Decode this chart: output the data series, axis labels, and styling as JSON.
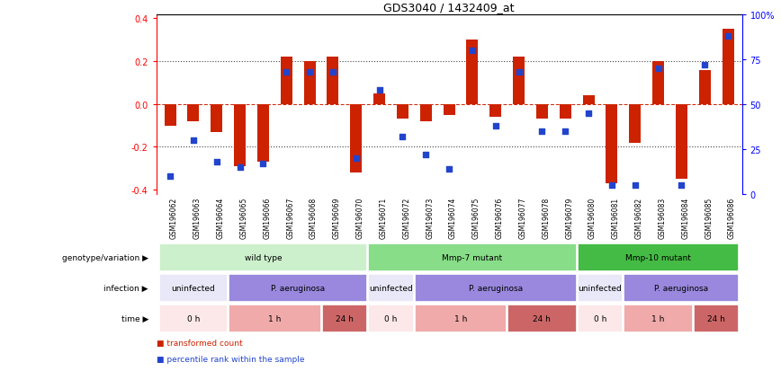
{
  "title": "GDS3040 / 1432409_at",
  "samples": [
    "GSM196062",
    "GSM196063",
    "GSM196064",
    "GSM196065",
    "GSM196066",
    "GSM196067",
    "GSM196068",
    "GSM196069",
    "GSM196070",
    "GSM196071",
    "GSM196072",
    "GSM196073",
    "GSM196074",
    "GSM196075",
    "GSM196076",
    "GSM196077",
    "GSM196078",
    "GSM196079",
    "GSM196080",
    "GSM196081",
    "GSM196082",
    "GSM196083",
    "GSM196084",
    "GSM196085",
    "GSM196086"
  ],
  "bar_values": [
    -0.1,
    -0.08,
    -0.13,
    -0.29,
    -0.27,
    0.22,
    0.2,
    0.22,
    -0.32,
    0.05,
    -0.07,
    -0.08,
    -0.05,
    0.3,
    -0.06,
    0.22,
    -0.07,
    -0.07,
    0.04,
    -0.37,
    -0.18,
    0.2,
    -0.35,
    0.16,
    0.35
  ],
  "blue_values": [
    10,
    30,
    18,
    15,
    17,
    68,
    68,
    68,
    20,
    58,
    32,
    22,
    14,
    80,
    38,
    68,
    35,
    35,
    45,
    5,
    5,
    70,
    5,
    72,
    88
  ],
  "ylim": [
    -0.42,
    0.42
  ],
  "y2lim": [
    0,
    100
  ],
  "yticks_left": [
    -0.4,
    -0.2,
    0.0,
    0.2,
    0.4
  ],
  "yticks_right": [
    0,
    25,
    50,
    75,
    100
  ],
  "ytick_right_labels": [
    "0",
    "25",
    "50",
    "75",
    "100%"
  ],
  "bar_color": "#cc2200",
  "blue_color": "#2244cc",
  "dotted_line_color": "#444444",
  "zero_line_color": "#cc2200",
  "genotype_groups": [
    {
      "label": "wild type",
      "start": 0,
      "end": 8,
      "color": "#ccf0cc"
    },
    {
      "label": "Mmp-7 mutant",
      "start": 9,
      "end": 17,
      "color": "#88dd88"
    },
    {
      "label": "Mmp-10 mutant",
      "start": 18,
      "end": 24,
      "color": "#44bb44"
    }
  ],
  "infection_groups": [
    {
      "label": "uninfected",
      "start": 0,
      "end": 2,
      "color": "#e8e8f8"
    },
    {
      "label": "P. aeruginosa",
      "start": 3,
      "end": 8,
      "color": "#9988dd"
    },
    {
      "label": "uninfected",
      "start": 9,
      "end": 10,
      "color": "#e8e8f8"
    },
    {
      "label": "P. aeruginosa",
      "start": 11,
      "end": 17,
      "color": "#9988dd"
    },
    {
      "label": "uninfected",
      "start": 18,
      "end": 19,
      "color": "#e8e8f8"
    },
    {
      "label": "P. aeruginosa",
      "start": 20,
      "end": 24,
      "color": "#9988dd"
    }
  ],
  "time_groups": [
    {
      "label": "0 h",
      "start": 0,
      "end": 2,
      "color": "#fce8e8"
    },
    {
      "label": "1 h",
      "start": 3,
      "end": 6,
      "color": "#f0aaaa"
    },
    {
      "label": "24 h",
      "start": 7,
      "end": 8,
      "color": "#cc6666"
    },
    {
      "label": "0 h",
      "start": 9,
      "end": 10,
      "color": "#fce8e8"
    },
    {
      "label": "1 h",
      "start": 11,
      "end": 14,
      "color": "#f0aaaa"
    },
    {
      "label": "24 h",
      "start": 15,
      "end": 17,
      "color": "#cc6666"
    },
    {
      "label": "0 h",
      "start": 18,
      "end": 19,
      "color": "#fce8e8"
    },
    {
      "label": "1 h",
      "start": 20,
      "end": 22,
      "color": "#f0aaaa"
    },
    {
      "label": "24 h",
      "start": 23,
      "end": 24,
      "color": "#cc6666"
    }
  ],
  "legend_items": [
    {
      "label": "transformed count",
      "color": "#cc2200"
    },
    {
      "label": "percentile rank within the sample",
      "color": "#2244cc"
    }
  ],
  "row_labels": [
    "genotype/variation",
    "infection",
    "time"
  ],
  "fig_width": 8.68,
  "fig_height": 4.14,
  "dpi": 100
}
